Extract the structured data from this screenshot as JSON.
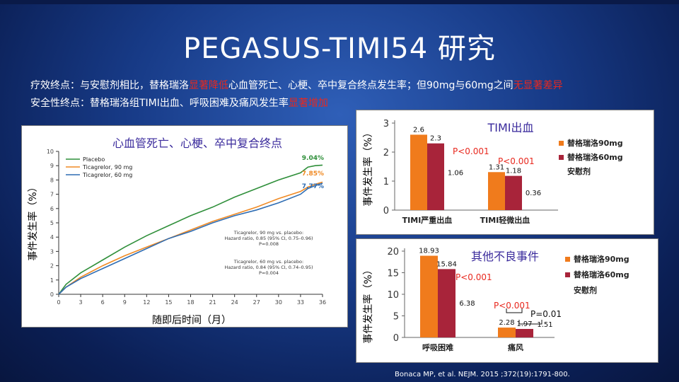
{
  "title": "PEGASUS-TIMI54 研究",
  "efficacy": {
    "a": "疗效终点：与安慰剂相比，替格瑞洛",
    "b": "显著降低",
    "c": "心血管死亡、心梗、卒中复合终点发生率；但90mg与60mg之间",
    "d": "无显著差异"
  },
  "safety": {
    "a": "安全性终点：替格瑞洛组TIMI出血、呼吸困难及痛风发生率",
    "b": "显著增加"
  },
  "citation": "Bonaca MP, et al. NEJM. 2015 ;372(19):1791-800.",
  "colors": {
    "placebo": "#2f8f3a",
    "ticagrelor90": "#f08a24",
    "ticagrelor60": "#2f6db3",
    "bar90": "#f07b1c",
    "bar60": "#a8243a",
    "red": "#e8281e"
  },
  "chart_data": [
    {
      "type": "line",
      "title": "心血管死亡、心梗、卒中复合终点",
      "xlabel": "随即后时间（月）",
      "ylabel": "事件发生率（%）",
      "xlim": [
        0,
        36
      ],
      "ylim": [
        0,
        10
      ],
      "xticks": [
        "0",
        "3",
        "6",
        "9",
        "12",
        "15",
        "18",
        "21",
        "24",
        "27",
        "30",
        "33",
        "36"
      ],
      "yticks": [
        "0",
        "1",
        "2",
        "3",
        "4",
        "5",
        "6",
        "7",
        "8",
        "9",
        "10"
      ],
      "legend": [
        "Placebo",
        "Ticagrelor, 90 mg",
        "Ticagrelor, 60 mg"
      ],
      "series": [
        {
          "name": "Placebo",
          "end_label": "9.04%",
          "x": [
            0,
            1,
            3,
            6,
            9,
            12,
            15,
            18,
            21,
            24,
            27,
            30,
            33,
            34,
            35,
            36
          ],
          "y": [
            0,
            0.7,
            1.5,
            2.4,
            3.3,
            4.1,
            4.8,
            5.5,
            6.1,
            6.8,
            7.4,
            8.0,
            8.5,
            8.9,
            9.0,
            9.04
          ]
        },
        {
          "name": "Ticagrelor, 90 mg",
          "end_label": "7.85%",
          "x": [
            0,
            1,
            3,
            6,
            9,
            12,
            15,
            18,
            21,
            24,
            27,
            30,
            33,
            34,
            35,
            36
          ],
          "y": [
            0,
            0.5,
            1.2,
            2.0,
            2.7,
            3.3,
            3.9,
            4.5,
            5.1,
            5.6,
            6.1,
            6.7,
            7.2,
            7.5,
            7.7,
            7.85
          ]
        },
        {
          "name": "Ticagrelor, 60 mg",
          "end_label": "7.77%",
          "x": [
            0,
            1,
            3,
            6,
            9,
            12,
            15,
            18,
            21,
            24,
            27,
            30,
            33,
            34,
            35,
            36
          ],
          "y": [
            0,
            0.5,
            1.1,
            1.8,
            2.5,
            3.2,
            3.9,
            4.4,
            5.0,
            5.5,
            5.9,
            6.4,
            7.0,
            7.4,
            7.6,
            7.77
          ]
        }
      ],
      "annotations": [
        {
          "lines": [
            "Ticagrelor, 90 mg vs. placebo:",
            "Hazard ratio, 0.85 (95% CI, 0.75–0.96)",
            "P=0.008"
          ]
        },
        {
          "lines": [
            "Ticagrelor, 60 mg vs. placebo:",
            "Hazard ratio, 0.84 (95% CI, 0.74–0.95)",
            "P=0.004"
          ]
        }
      ]
    },
    {
      "type": "bar",
      "title": "TIMI出血",
      "ylabel": "事件发生率（%）",
      "ylim": [
        0,
        3
      ],
      "yticks": [
        "0",
        "1",
        "2",
        "3"
      ],
      "categories": [
        "TIMI严重出血",
        "TIMI轻微出血"
      ],
      "legend": [
        "替格瑞洛90mg",
        "替格瑞洛60mg",
        "安慰剂"
      ],
      "series": [
        {
          "name": "替格瑞洛90mg",
          "values": [
            2.6,
            1.31
          ],
          "labels": [
            "2.6",
            "1.31"
          ]
        },
        {
          "name": "替格瑞洛60mg",
          "values": [
            2.3,
            1.18
          ],
          "labels": [
            "2.3",
            "1.18"
          ]
        },
        {
          "name": "安慰剂",
          "values": [
            1.06,
            0.36
          ],
          "labels": [
            "1.06",
            "0.36"
          ]
        }
      ],
      "p_values": [
        "P<0.001",
        "P<0.001"
      ]
    },
    {
      "type": "bar",
      "title": "其他不良事件",
      "ylabel": "事件发生率（%）",
      "ylim": [
        0,
        20
      ],
      "yticks": [
        "0",
        "5",
        "10",
        "15",
        "20"
      ],
      "categories": [
        "呼吸困难",
        "痛风"
      ],
      "legend": [
        "替格瑞洛90mg",
        "替格瑞洛60mg",
        "安慰剂"
      ],
      "series": [
        {
          "name": "替格瑞洛90mg",
          "values": [
            18.93,
            2.28
          ],
          "labels": [
            "18.93",
            "2.28"
          ]
        },
        {
          "name": "替格瑞洛60mg",
          "values": [
            15.84,
            1.97
          ],
          "labels": [
            "15.84",
            "1.97"
          ]
        },
        {
          "name": "安慰剂",
          "values": [
            6.38,
            1.51
          ],
          "labels": [
            "6.38",
            "1.51"
          ]
        }
      ],
      "p_values": [
        "P<0.001",
        "P<0.001",
        "P=0.01"
      ]
    }
  ]
}
